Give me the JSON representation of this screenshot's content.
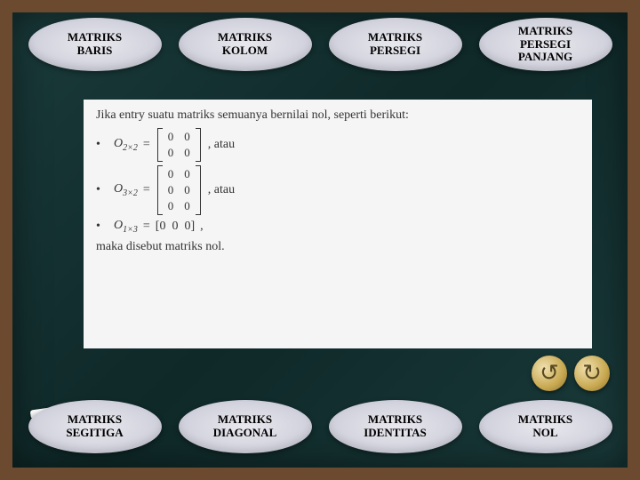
{
  "tabs_top": [
    {
      "label": "MATRIKS\nBARIS"
    },
    {
      "label": "MATRIKS\nKOLOM"
    },
    {
      "label": "MATRIKS\nPERSEGI"
    },
    {
      "label": "MATRIKS\nPERSEGI\nPANJANG"
    }
  ],
  "tabs_bottom": [
    {
      "label": "MATRIKS\nSEGITIGA"
    },
    {
      "label": "MATRIKS\nDIAGONAL"
    },
    {
      "label": "MATRIKS\nIDENTITAS"
    },
    {
      "label": "MATRIKS\nNOL"
    }
  ],
  "content": {
    "intro": "Jika entry suatu matriks semuanya bernilai nol, seperti berikut:",
    "items": [
      {
        "name": "O",
        "sub": "2×2",
        "rows": 2,
        "cols": 2,
        "after": ", atau"
      },
      {
        "name": "O",
        "sub": "3×2",
        "rows": 3,
        "cols": 2,
        "after": ", atau"
      },
      {
        "name": "O",
        "sub": "1×3",
        "rows": 1,
        "cols": 3,
        "after": ","
      }
    ],
    "zero": "0",
    "outro": "maka disebut matriks nol."
  },
  "nav": {
    "prev": "↺",
    "next": "↻"
  },
  "colors": {
    "frame": "#6b4a2f",
    "board": "#1a3a3a",
    "tab_bg": "#e0e0ea",
    "panel_bg": "#f5f5f5"
  }
}
